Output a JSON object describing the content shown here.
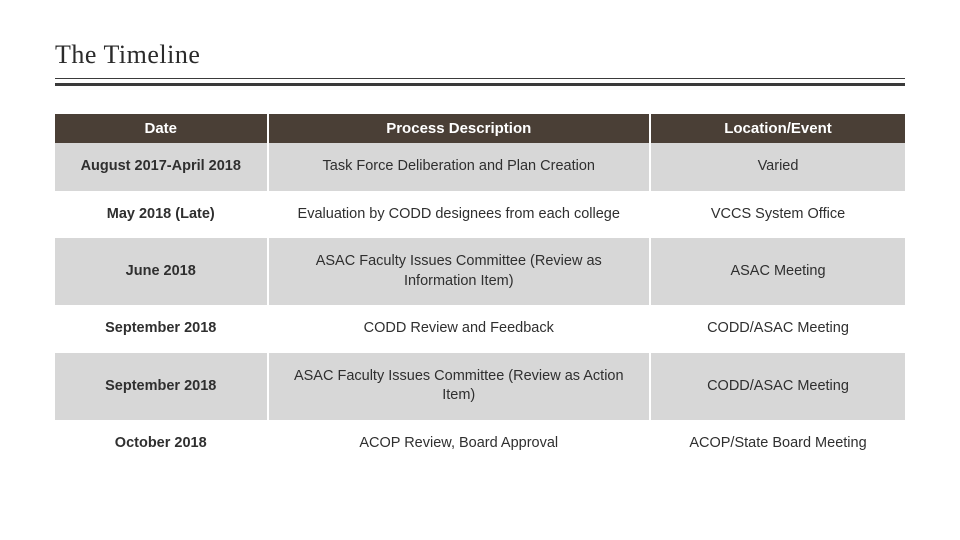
{
  "title": "The Timeline",
  "colors": {
    "header_bg": "#4a3f36",
    "header_text": "#ffffff",
    "row_odd_bg": "#d7d7d7",
    "row_even_bg": "#ffffff",
    "rule": "#3a3a3a",
    "text": "#2b2b2b"
  },
  "table": {
    "columns": [
      {
        "key": "date",
        "label": "Date",
        "width_pct": 25,
        "bold": true
      },
      {
        "key": "desc",
        "label": "Process Description",
        "width_pct": 45,
        "bold": false
      },
      {
        "key": "loc",
        "label": "Location/Event",
        "width_pct": 30,
        "bold": false
      }
    ],
    "header_fontsize": 15,
    "cell_fontsize": 14.5,
    "rows": [
      {
        "date": "August 2017-April 2018",
        "desc": "Task Force Deliberation and Plan Creation",
        "loc": "Varied"
      },
      {
        "date": "May 2018 (Late)",
        "desc": "Evaluation by CODD designees from each college",
        "loc": "VCCS System Office"
      },
      {
        "date": "June 2018",
        "desc": "ASAC Faculty Issues Committee (Review as Information Item)",
        "loc": "ASAC Meeting"
      },
      {
        "date": "September 2018",
        "desc": "CODD Review and Feedback",
        "loc": "CODD/ASAC Meeting"
      },
      {
        "date": "September 2018",
        "desc": "ASAC Faculty Issues Committee (Review as Action Item)",
        "loc": "CODD/ASAC Meeting"
      },
      {
        "date": "October 2018",
        "desc": "ACOP Review, Board Approval",
        "loc": "ACOP/State Board Meeting"
      }
    ]
  }
}
